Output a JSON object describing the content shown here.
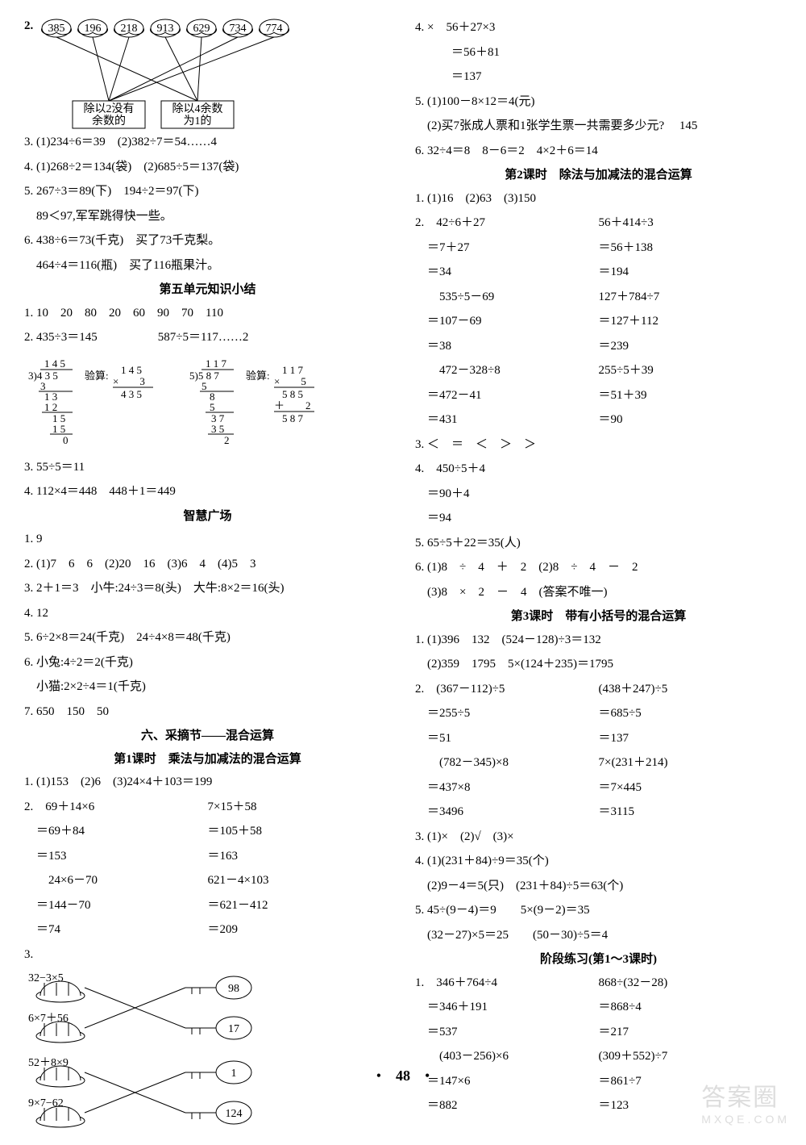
{
  "page_number": "48",
  "watermark_top": "答案圈",
  "watermark_bottom": "MXQE.COM",
  "left": {
    "q2_nums": [
      "385",
      "196",
      "218",
      "913",
      "629",
      "734",
      "774"
    ],
    "q2_box1": "除以2没有\n余数的",
    "q2_box2": "除以4余数\n为1的",
    "q3": "3. (1)234÷6＝39　(2)382÷7＝54……4",
    "q4": "4. (1)268÷2＝134(袋)　(2)685÷5＝137(袋)",
    "q5a": "5. 267÷3＝89(下)　194÷2＝97(下)",
    "q5b": "　89＜97,军军跳得快一些。",
    "q6a": "6. 438÷6＝73(千克)　买了73千克梨。",
    "q6b": "　464÷4＝116(瓶)　买了116瓶果汁。",
    "t1": "第五单元知识小结",
    "s1_1": "1. 10　20　80　20　60　90　70　110",
    "s1_2": "2. 435÷3＝145　　　　　587÷5＝117……2",
    "s1_3": "3. 55÷5＝11",
    "s1_4": "4. 112×4＝448　448＋1＝449",
    "t2": "智慧广场",
    "z1": "1. 9",
    "z2": "2. (1)7　6　6　(2)20　16　(3)6　4　(4)5　3",
    "z3": "3. 2＋1＝3　小牛:24÷3＝8(头)　大牛:8×2＝16(头)",
    "z4": "4. 12",
    "z5": "5. 6÷2×8＝24(千克)　24÷4×8＝48(千克)",
    "z6a": "6. 小兔:4÷2＝2(千克)",
    "z6b": "　小猫:2×2÷4＝1(千克)",
    "z7": "7. 650　150　50",
    "t3": "六、采摘节——混合运算",
    "t3s": "第1课时　乘法与加减法的混合运算",
    "m1": "1. (1)153　(2)6　(3)24×4＋103＝199",
    "m2_l": [
      "2.　69＋14×6",
      "　＝69＋84",
      "　＝153",
      "　　24×6－70",
      "　＝144－70",
      "　＝74"
    ],
    "m2_r": [
      "7×15＋58",
      "＝105＋58",
      "＝163",
      "621－4×103",
      "＝621－412",
      "＝209"
    ],
    "m3": "3.",
    "m3_locks": [
      "32−3×5",
      "6×7＋56",
      "52＋8×9",
      "9×7−62"
    ],
    "m3_keys": [
      "98",
      "17",
      "1",
      "124"
    ]
  },
  "right": {
    "r4a": "4. ×　56＋27×3",
    "r4b": "　　　＝56＋81",
    "r4c": "　　　＝137",
    "r5a": "5. (1)100－8×12＝4(元)",
    "r5b": "　(2)买7张成人票和1张学生票一共需要多少元?　 145",
    "r6": "6. 32÷4＝8　8－6＝2　4×2＋6＝14",
    "t1": "第2课时　除法与加减法的混合运算",
    "d1": "1. (1)16　(2)63　(3)150",
    "d2_l": [
      "2.　42÷6＋27",
      "　＝7＋27",
      "　＝34",
      "　　535÷5－69",
      "　＝107－69",
      "　＝38",
      "　　472－328÷8",
      "　＝472－41",
      "　＝431"
    ],
    "d2_r": [
      "56＋414÷3",
      "＝56＋138",
      "＝194",
      "127＋784÷7",
      "＝127＋112",
      "＝239",
      "255÷5＋39",
      "＝51＋39",
      "＝90"
    ],
    "d3": "3. ＜　＝　＜　＞　＞",
    "d4a": "4.　450÷5＋4",
    "d4b": "　＝90＋4",
    "d4c": "　＝94",
    "d5": "5. 65÷5＋22＝35(人)",
    "d6a": "6. (1)8　÷　4　＋　2　(2)8　÷　4　－　2",
    "d6b": "　(3)8　×　2　－　4　(答案不唯一)",
    "t2": "第3课时　带有小括号的混合运算",
    "k1a": "1. (1)396　132　(524－128)÷3＝132",
    "k1b": "　(2)359　1795　5×(124＋235)＝1795",
    "k2_l": [
      "2.　(367－112)÷5",
      "　＝255÷5",
      "　＝51",
      "　　(782－345)×8",
      "　＝437×8",
      "　＝3496"
    ],
    "k2_r": [
      "(438＋247)÷5",
      "＝685÷5",
      "＝137",
      "7×(231＋214)",
      "＝7×445",
      "＝3115"
    ],
    "k3": "3. (1)×　(2)√　(3)×",
    "k4a": "4. (1)(231＋84)÷9＝35(个)",
    "k4b": "　(2)9－4＝5(只)　(231＋84)÷5＝63(个)",
    "k5a": "5. 45÷(9－4)＝9　　5×(9－2)＝35",
    "k5b": "　(32－27)×5＝25　　(50－30)÷5＝4",
    "t3": "阶段练习(第1～3课时)",
    "p1_l": [
      "1.　346＋764÷4",
      "　＝346＋191",
      "　＝537",
      "　　(403－256)×6",
      "　＝147×6",
      "　＝882"
    ],
    "p1_r": [
      "868÷(32－28)",
      "＝868÷4",
      "＝217",
      "(309＋552)÷7",
      "＝861÷7",
      "＝123"
    ]
  }
}
